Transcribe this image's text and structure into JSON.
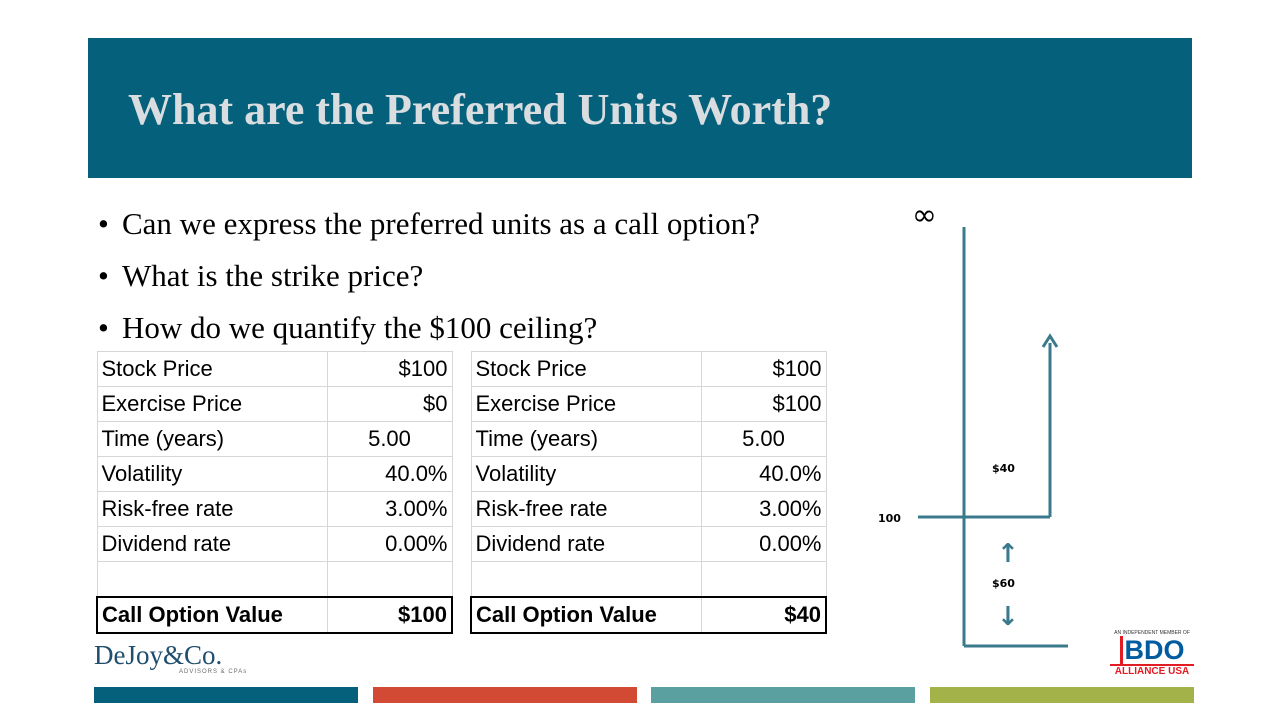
{
  "slide": {
    "title": "What are the Preferred Units Worth?",
    "bullets": [
      "Can we express the preferred units as a call option?",
      "What is the strike price?",
      "How do we quantify the $100 ceiling?"
    ],
    "bullet_marker": "•"
  },
  "tables": [
    {
      "rows": [
        {
          "label": "Stock Price",
          "value": "$100"
        },
        {
          "label": "Exercise Price",
          "value": "$0"
        },
        {
          "label": "Time (years)",
          "value": "5.00"
        },
        {
          "label": "Volatility",
          "value": "40.0%"
        },
        {
          "label": "Risk-free rate",
          "value": "3.00%"
        },
        {
          "label": "Dividend rate",
          "value": "0.00%"
        }
      ],
      "total": {
        "label": "Call Option Value",
        "value": "$100"
      }
    },
    {
      "rows": [
        {
          "label": "Stock Price",
          "value": "$100"
        },
        {
          "label": "Exercise Price",
          "value": "$100"
        },
        {
          "label": "Time (years)",
          "value": "5.00"
        },
        {
          "label": "Volatility",
          "value": "40.0%"
        },
        {
          "label": "Risk-free rate",
          "value": "3.00%"
        },
        {
          "label": "Dividend rate",
          "value": "0.00%"
        }
      ],
      "total": {
        "label": "Call Option Value",
        "value": "$40"
      }
    }
  ],
  "diagram": {
    "infinity_symbol": "∞",
    "level_label": "100",
    "upper_label": "$40",
    "lower_label": "$60",
    "up_arrow": "↑",
    "down_arrow": "↓",
    "line_color": "#3a7a8c"
  },
  "branding": {
    "left_name": "DeJoy&Co.",
    "left_sub": "ADVISORS & CPAs",
    "right_top": "AN INDEPENDENT MEMBER OF",
    "right_mark": "BDO",
    "right_bottom": "ALLIANCE USA"
  },
  "footer_colors": [
    "#05617b",
    "#d24a33",
    "#5aa0a0",
    "#a3b34a"
  ]
}
